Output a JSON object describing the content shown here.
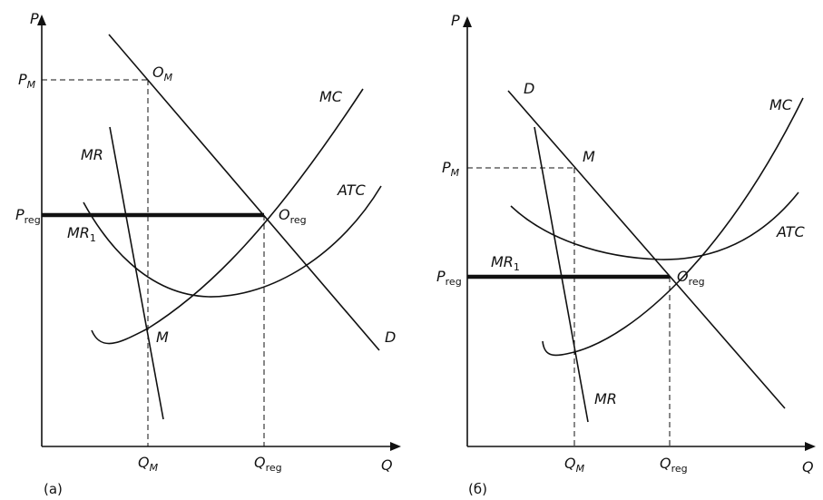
{
  "panels": [
    {
      "caption": "(а)",
      "y_axis": "P",
      "x_axis": "Q",
      "curves": {
        "mc": "MC",
        "atc": "ATC",
        "demand": "D",
        "mr": "MR",
        "mr1_main": "MR",
        "mr1_sub": "1"
      },
      "points": {
        "om_main": "O",
        "om_sub": "M",
        "oreg_main": "O",
        "oreg_sub": "reg",
        "m": "M"
      },
      "prices": {
        "pm_main": "P",
        "pm_sub": "M",
        "preg_main": "P",
        "preg_sub": "reg"
      },
      "quantities": {
        "qm_main": "Q",
        "qm_sub": "M",
        "qreg_main": "Q",
        "qreg_sub": "reg"
      }
    },
    {
      "caption": "(б)",
      "y_axis": "P",
      "x_axis": "Q",
      "curves": {
        "mc": "MC",
        "atc": "ATC",
        "demand": "D",
        "mr": "MR",
        "mr1_main": "MR",
        "mr1_sub": "1"
      },
      "points": {
        "m": "M",
        "oreg_main": "O",
        "oreg_sub": "reg"
      },
      "prices": {
        "pm_main": "P",
        "pm_sub": "M",
        "preg_main": "P",
        "preg_sub": "reg"
      },
      "quantities": {
        "qm_main": "Q",
        "qm_sub": "M",
        "qreg_main": "Q",
        "qreg_sub": "reg"
      }
    }
  ]
}
